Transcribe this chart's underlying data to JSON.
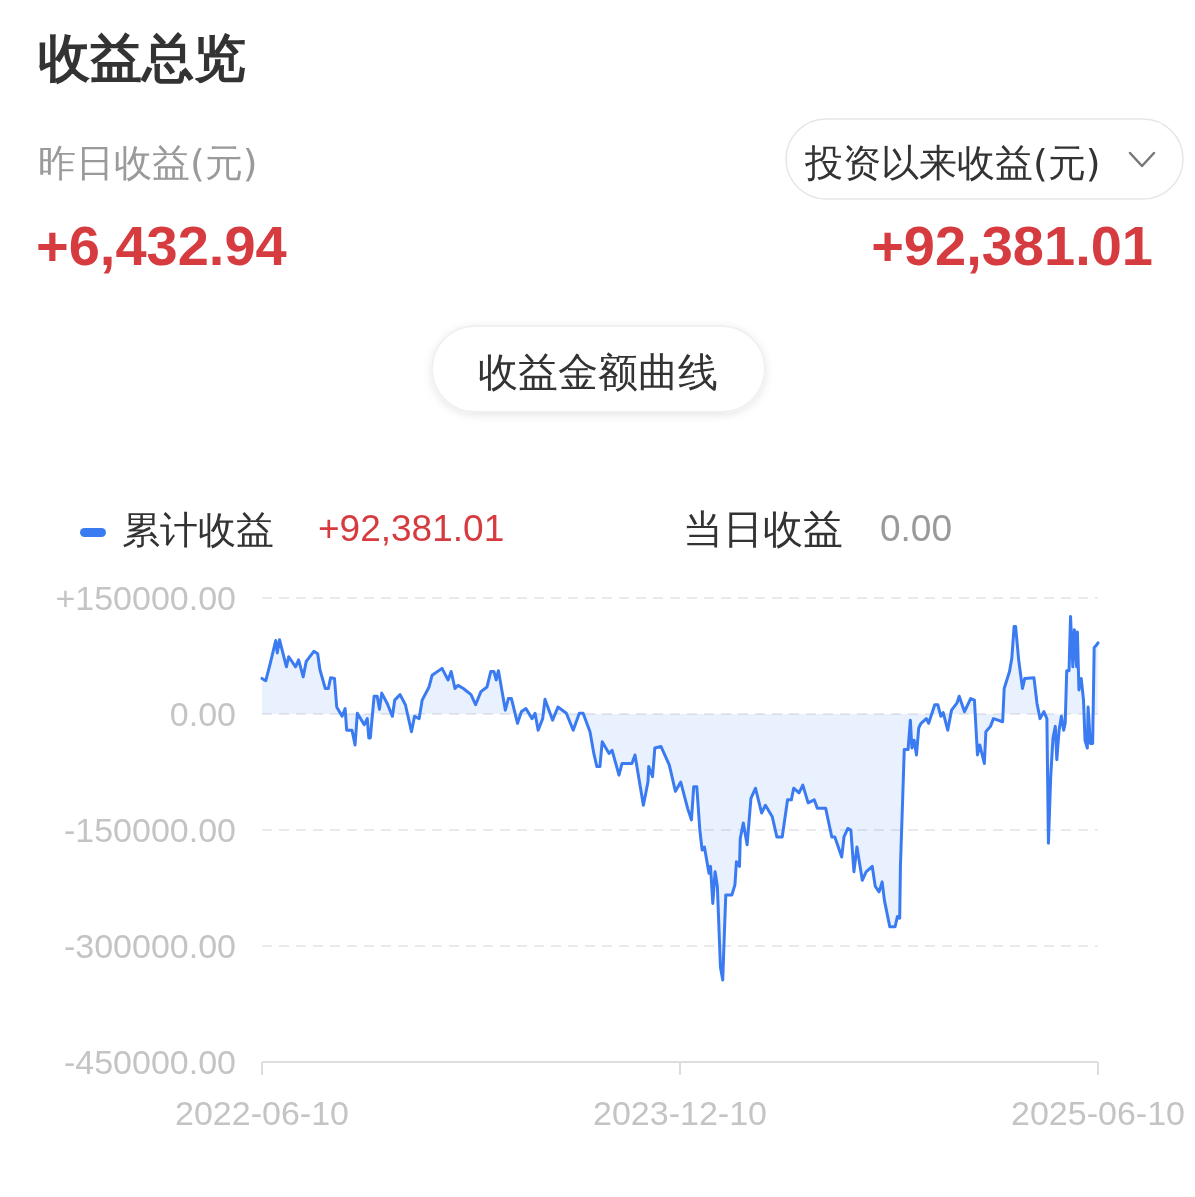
{
  "chart_data": {
    "type": "area",
    "title": "收益总览",
    "annotations": [
      "昨日收益(元)",
      "+6,432.94",
      "投资以来收益(元)",
      "+92,381.01",
      "收益金额曲线",
      "+92,381.01",
      "当日收益",
      "0.00"
    ],
    "x": [
      "2022-06-10",
      "2022-06-15",
      "2022-06-21",
      "2022-06-28",
      "2022-06-30",
      "2022-07-03",
      "2022-07-12",
      "2022-07-15",
      "2022-07-24",
      "2022-07-28",
      "2022-08-03",
      "2022-08-07",
      "2022-08-17",
      "2022-08-22",
      "2022-08-25",
      "2022-09-01",
      "2022-09-05",
      "2022-09-08",
      "2022-09-13",
      "2022-09-16",
      "2022-09-23",
      "2022-09-27",
      "2022-09-29",
      "2022-10-06",
      "2022-10-10",
      "2022-10-13",
      "2022-10-22",
      "2022-10-26",
      "2022-10-28",
      "2022-10-30",
      "2022-11-04",
      "2022-11-08",
      "2022-11-11",
      "2022-11-14",
      "2022-11-21",
      "2022-11-28",
      "2022-12-01",
      "2022-12-08",
      "2022-12-15",
      "2022-12-23",
      "2022-12-27",
      "2023-01-02",
      "2023-01-06",
      "2023-01-15",
      "2023-01-19",
      "2023-02-01",
      "2023-02-09",
      "2023-02-13",
      "2023-02-18",
      "2023-02-22",
      "2023-03-01",
      "2023-03-11",
      "2023-03-17",
      "2023-03-24",
      "2023-04-01",
      "2023-04-06",
      "2023-04-10",
      "2023-04-13",
      "2023-04-16",
      "2023-04-22",
      "2023-04-25",
      "2023-04-29",
      "2023-05-03",
      "2023-05-11",
      "2023-05-16",
      "2023-05-22",
      "2023-05-30",
      "2023-06-03",
      "2023-06-07",
      "2023-06-13",
      "2023-06-16",
      "2023-06-26",
      "2023-07-03",
      "2023-07-14",
      "2023-07-23",
      "2023-07-31",
      "2023-08-05",
      "2023-08-14",
      "2023-08-19",
      "2023-08-23",
      "2023-08-27",
      "2023-08-30",
      "2023-09-08",
      "2023-09-12",
      "2023-09-21",
      "2023-09-25",
      "2023-10-08",
      "2023-10-12",
      "2023-10-23",
      "2023-10-29",
      "2023-10-30",
      "2023-11-04",
      "2023-11-07",
      "2023-11-15",
      "2023-11-26",
      "2023-12-04",
      "2023-12-11",
      "2023-12-20",
      "2023-12-25",
      "2023-12-28",
      "2024-01-01",
      "2024-01-05",
      "2024-01-08",
      "2024-01-11",
      "2024-01-17",
      "2024-01-19",
      "2024-01-22",
      "2024-01-25",
      "2024-01-28",
      "2024-02-01",
      "2024-02-04",
      "2024-02-08",
      "2024-02-16",
      "2024-02-20",
      "2024-02-22",
      "2024-02-26",
      "2024-02-27",
      "2024-03-02",
      "2024-03-07",
      "2024-03-12",
      "2024-03-18",
      "2024-03-26",
      "2024-03-31",
      "2024-04-09",
      "2024-04-15",
      "2024-04-22",
      "2024-04-29",
      "2024-05-04",
      "2024-05-07",
      "2024-05-14",
      "2024-05-19",
      "2024-05-26",
      "2024-06-03",
      "2024-06-07",
      "2024-06-18",
      "2024-06-26",
      "2024-06-30",
      "2024-07-09",
      "2024-07-12",
      "2024-07-17",
      "2024-07-21",
      "2024-07-25",
      "2024-07-29",
      "2024-08-05",
      "2024-08-10",
      "2024-08-18",
      "2024-08-22",
      "2024-08-27",
      "2024-08-31",
      "2024-09-03",
      "2024-09-10",
      "2024-09-17",
      "2024-09-20",
      "2024-09-23",
      "2024-09-24",
      "2024-09-27",
      "2024-09-29",
      "2024-10-04",
      "2024-10-07",
      "2024-10-09",
      "2024-10-12",
      "2024-10-15",
      "2024-10-18",
      "2024-10-21",
      "2024-10-28",
      "2024-10-31",
      "2024-11-08",
      "2024-11-12",
      "2024-11-16",
      "2024-11-19",
      "2024-11-25",
      "2024-11-30",
      "2024-12-07",
      "2024-12-10",
      "2024-12-17",
      "2024-12-25",
      "2024-12-30",
      "2025-01-03",
      "2025-01-06",
      "2025-01-12",
      "2025-01-14",
      "2025-01-20",
      "2025-01-24",
      "2025-02-05",
      "2025-02-07",
      "2025-02-14",
      "2025-02-17",
      "2025-02-20",
      "2025-02-22",
      "2025-02-26",
      "2025-03-03",
      "2025-03-06",
      "2025-03-18",
      "2025-03-22",
      "2025-03-26",
      "2025-03-31",
      "2025-04-04",
      "2025-04-06",
      "2025-04-09",
      "2025-04-12",
      "2025-04-15",
      "2025-04-17",
      "2025-04-20",
      "2025-04-23",
      "2025-04-26",
      "2025-04-28",
      "2025-04-30",
      "2025-05-03",
      "2025-05-05",
      "2025-05-08",
      "2025-05-10",
      "2025-05-13",
      "2025-05-14",
      "2025-05-16",
      "2025-05-19",
      "2025-05-22",
      "2025-05-24",
      "2025-05-27",
      "2025-05-28",
      "2025-05-31",
      "2025-06-03",
      "2025-06-05",
      "2025-06-08",
      "2025-06-10"
    ],
    "series": [
      {
        "name": "累计收益",
        "color": "#3b7bf2",
        "values": [
          46000,
          43000,
          66000,
          95000,
          79000,
          96000,
          61000,
          74000,
          61000,
          70000,
          48000,
          68000,
          81000,
          78000,
          57000,
          33000,
          33000,
          47000,
          46000,
          9000,
          -3000,
          7000,
          -21000,
          -21000,
          -40000,
          1000,
          -14000,
          -6000,
          -31000,
          -31000,
          23000,
          23000,
          6000,
          27000,
          14000,
          -3000,
          18000,
          25000,
          12000,
          -23000,
          -3000,
          -6000,
          18000,
          35000,
          50000,
          59000,
          44000,
          55000,
          33000,
          37000,
          33000,
          25000,
          12000,
          29000,
          35000,
          55000,
          55000,
          44000,
          56000,
          22000,
          5000,
          20000,
          20000,
          -12000,
          3000,
          7000,
          -6000,
          1000,
          -21000,
          -6000,
          19000,
          -8000,
          9000,
          1000,
          -21000,
          1000,
          1000,
          -23000,
          -51000,
          -68000,
          -68000,
          -36000,
          -51000,
          -47000,
          -79000,
          -64000,
          -64000,
          -53000,
          -118000,
          -88000,
          -68000,
          -81000,
          -44000,
          -42000,
          -66000,
          -100000,
          -88000,
          -122000,
          -137000,
          -94000,
          -94000,
          -150000,
          -176000,
          -172000,
          -206000,
          -197000,
          -245000,
          -204000,
          -223000,
          -327000,
          -344000,
          -234000,
          -234000,
          -221000,
          -191000,
          -197000,
          -161000,
          -141000,
          -169000,
          -109000,
          -96000,
          -128000,
          -118000,
          -133000,
          -159000,
          -159000,
          -111000,
          -111000,
          -96000,
          -102000,
          -92000,
          -115000,
          -111000,
          -122000,
          -122000,
          -159000,
          -159000,
          -185000,
          -159000,
          -148000,
          -150000,
          -204000,
          -172000,
          -215000,
          -204000,
          -197000,
          -223000,
          -230000,
          -217000,
          -241000,
          -275000,
          -275000,
          -262000,
          -264000,
          -197000,
          -107000,
          -46000,
          -46000,
          -8000,
          -44000,
          -34000,
          -53000,
          -18000,
          -12000,
          -6000,
          -12000,
          12000,
          12000,
          -3000,
          2000,
          -21000,
          5000,
          14000,
          23000,
          3000,
          20000,
          18000,
          -53000,
          -40000,
          -64000,
          -23000,
          -16000,
          -6000,
          -10000,
          33000,
          55000,
          72000,
          113000,
          113000,
          70000,
          33000,
          46000,
          47000,
          14000,
          -6000,
          3000,
          -6000,
          -167000,
          -81000,
          -31000,
          -16000,
          -59000,
          -21000,
          -3000,
          -21000,
          -12000,
          56000,
          56000,
          126000,
          61000,
          109000,
          61000,
          106000,
          31000,
          46000,
          18000,
          -34000,
          -44000,
          9000,
          -38000,
          -38000,
          86000,
          89000,
          92000
        ]
      }
    ],
    "xlim": [
      "2022-06-10",
      "2025-06-10"
    ],
    "xticks": [
      "2022-06-10",
      "2023-12-10",
      "2025-06-10"
    ],
    "ylim": [
      -450000,
      150000
    ],
    "yticks": [
      {
        "value": 150000,
        "label": "+150000.00"
      },
      {
        "value": 0,
        "label": "0.00"
      },
      {
        "value": -150000,
        "label": "-150000.00"
      },
      {
        "value": -300000,
        "label": "-300000.00"
      },
      {
        "value": -450000,
        "label": "-450000.00"
      }
    ],
    "grid": "y",
    "legend": "top left"
  }
}
